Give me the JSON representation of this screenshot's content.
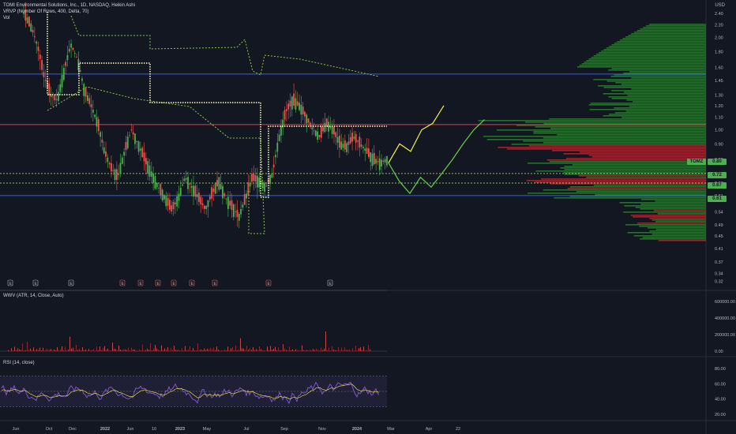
{
  "legend": {
    "symbol": "TOMI Environmental Solutions, Inc., 1D, NASDAQ, Heikin Ashi",
    "vrvp": "VRVP (Number Of Rows, 400, Delta, 70)",
    "vol": "Vol"
  },
  "currency": "USD",
  "wwv_label": "WWV (ATR, 14, Close, Auto)",
  "rsi_label": "RSI (14, close)",
  "tags": {
    "current": {
      "text": "0.80",
      "color": "#4caf50"
    },
    "ticker": {
      "text": "TOMZ",
      "color": "#4caf50"
    },
    "level_072": {
      "text": "0.72",
      "color": "#4caf50"
    },
    "level_067": {
      "text": "0.67",
      "color": "#4caf50"
    },
    "level_061": {
      "text": "0.61",
      "color": "#4caf50"
    }
  },
  "colors": {
    "background": "#131722",
    "up": "#4caf50",
    "down": "#ef5350",
    "blue_line": "#2962ff",
    "red_line": "#f23645",
    "dotted_yellow": "#ffffc0",
    "dotted_green": "#8bc34a",
    "projection_yellow": "#f5f04a",
    "projection_green": "#6ad04a",
    "rsi_line": "#7e57c2"
  },
  "chart_data": [
    {
      "type": "candlestick",
      "title": "",
      "price_axis_ticks": [
        "2.40",
        "2.20",
        "2.00",
        "1.80",
        "1.60",
        "1.45",
        "1.30",
        "1.20",
        "1.10",
        "1.00",
        "0.90",
        "0.80",
        "0.72",
        "0.67",
        "0.61",
        "0.54",
        "0.49",
        "0.45",
        "0.41",
        "0.37",
        "0.34",
        "0.32"
      ],
      "time_axis_ticks": [
        "Jun",
        "Oct",
        "Dec",
        "2022",
        "Jun",
        "10",
        "2023",
        "May",
        "Jul",
        "Sep",
        "Nov",
        "2024",
        "Mar",
        "Apr",
        "22"
      ],
      "scale": "log",
      "horizontal_levels": [
        {
          "price": 1.52,
          "color": "blue"
        },
        {
          "price": 1.04,
          "color": "red"
        },
        {
          "price": 0.72,
          "color": "green-dotted"
        },
        {
          "price": 0.67,
          "color": "green-dotted"
        },
        {
          "price": 0.61,
          "color": "blue"
        }
      ],
      "approx_close_series": [
        2.4,
        2.2,
        1.9,
        1.5,
        1.3,
        1.25,
        1.55,
        1.9,
        1.7,
        1.35,
        1.2,
        1.05,
        0.85,
        0.75,
        0.7,
        0.85,
        1.0,
        0.9,
        0.8,
        0.72,
        0.65,
        0.6,
        0.55,
        0.6,
        0.7,
        0.65,
        0.6,
        0.55,
        0.62,
        0.68,
        0.6,
        0.56,
        0.52,
        0.6,
        0.7,
        0.68,
        0.65,
        0.72,
        0.95,
        1.15,
        1.25,
        1.2,
        1.1,
        1.0,
        0.95,
        1.05,
        1.0,
        0.9,
        0.88,
        0.95,
        0.9,
        0.85,
        0.8,
        0.78,
        0.8
      ],
      "projection_yellow": [
        0.78,
        0.9,
        0.85,
        1.0,
        1.05,
        1.2
      ],
      "projection_green": [
        0.78,
        0.68,
        0.62,
        0.7,
        0.65,
        0.72,
        0.8,
        0.9,
        1.0,
        1.08
      ],
      "event_markers": [
        "E",
        "E",
        "E",
        "E",
        "E",
        "E",
        "E",
        "E",
        "E",
        "E",
        "E"
      ]
    },
    {
      "type": "bar",
      "title": "WWV (ATR, 14, Close, Auto)",
      "y_ticks": [
        "600000.00",
        "400000.00",
        "200000.00",
        "0.00"
      ],
      "note_values": [
        20000,
        5000,
        40000,
        8000,
        60000,
        12000,
        30000,
        45000,
        15000,
        70000,
        9000,
        22000,
        180000,
        25000,
        35000,
        10000,
        55000,
        14000,
        28000,
        18000,
        40000,
        16000,
        33000,
        12000,
        50000,
        20000,
        15000
      ]
    },
    {
      "type": "line",
      "title": "RSI (14, close)",
      "y_ticks": [
        "80.00",
        "60.00",
        "40.00",
        "20.00"
      ],
      "band": [
        30,
        70
      ]
    }
  ]
}
